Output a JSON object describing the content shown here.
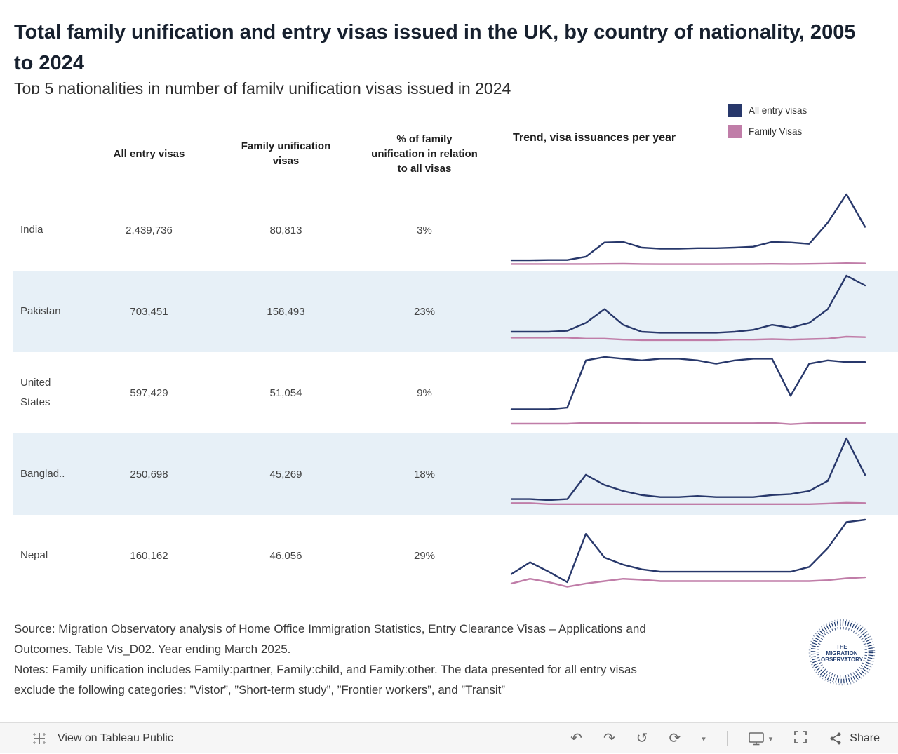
{
  "title": "Total family unification and entry visas issued in the UK, by country of nationality, 2005 to 2024",
  "subtitle": "Top 5 nationalities in number of family unification visas issued in 2024",
  "legend": {
    "items": [
      {
        "label": "All entry visas",
        "color": "#28386b"
      },
      {
        "label": "Family Visas",
        "color": "#c07da8"
      }
    ]
  },
  "table": {
    "columns": [
      {
        "lines": [
          "All entry visas"
        ]
      },
      {
        "lines": [
          "Family unification",
          "visas"
        ]
      },
      {
        "lines": [
          "% of family",
          "unification in relation",
          "to all visas"
        ]
      }
    ],
    "trend_header": "Trend, visa issuances per year",
    "rows": [
      {
        "country": "India",
        "all_entry_visas": "2,439,736",
        "family_unification_visas": "80,813",
        "pct_family": "3%"
      },
      {
        "country": "Pakistan",
        "all_entry_visas": "703,451",
        "family_unification_visas": "158,493",
        "pct_family": "23%"
      },
      {
        "country": "United States",
        "all_entry_visas": "597,429",
        "family_unification_visas": "51,054",
        "pct_family": "9%"
      },
      {
        "country": "Banglad..",
        "all_entry_visas": "250,698",
        "family_unification_visas": "45,269",
        "pct_family": "18%"
      },
      {
        "country": "Nepal",
        "all_entry_visas": "160,162",
        "family_unification_visas": "46,056",
        "pct_family": "29%"
      }
    ]
  },
  "chart_data": [
    {
      "type": "line",
      "country": "India",
      "y_units": "thousand visas per year (estimated from sparkline)",
      "x": [
        2005,
        2006,
        2007,
        2008,
        2009,
        2010,
        2011,
        2012,
        2013,
        2014,
        2015,
        2016,
        2017,
        2018,
        2019,
        2020,
        2021,
        2022,
        2023,
        2024
      ],
      "series": [
        {
          "name": "All entry visas",
          "color": "#28386b",
          "values": [
            17,
            17,
            18,
            18,
            30,
            80,
            82,
            62,
            58,
            58,
            60,
            60,
            62,
            65,
            82,
            80,
            75,
            150,
            250,
            135
          ]
        },
        {
          "name": "Family Visas",
          "color": "#c07da8",
          "values": [
            4,
            4,
            4,
            4,
            4,
            4.5,
            5,
            4,
            3.5,
            3.5,
            3.5,
            3.5,
            4,
            4,
            4.5,
            4,
            4.5,
            5.5,
            7,
            6
          ]
        }
      ]
    },
    {
      "type": "line",
      "country": "Pakistan",
      "y_units": "thousand visas per year (estimated from sparkline)",
      "x": [
        2005,
        2006,
        2007,
        2008,
        2009,
        2010,
        2011,
        2012,
        2013,
        2014,
        2015,
        2016,
        2017,
        2018,
        2019,
        2020,
        2021,
        2022,
        2023,
        2024
      ],
      "series": [
        {
          "name": "All entry visas",
          "color": "#28386b",
          "values": [
            15,
            15,
            15,
            16,
            24,
            38,
            22,
            15,
            14,
            14,
            14,
            14,
            15,
            17,
            22,
            19,
            24,
            38,
            72,
            62
          ]
        },
        {
          "name": "Family Visas",
          "color": "#c07da8",
          "values": [
            9,
            9,
            9,
            9,
            8,
            8,
            7,
            6.5,
            6.5,
            6.5,
            6.5,
            6.5,
            7,
            7,
            7.5,
            7,
            7.5,
            8,
            10,
            9.5
          ]
        }
      ]
    },
    {
      "type": "line",
      "country": "United States",
      "y_units": "thousand visas per year (estimated from sparkline)",
      "x": [
        2005,
        2006,
        2007,
        2008,
        2009,
        2010,
        2011,
        2012,
        2013,
        2014,
        2015,
        2016,
        2017,
        2018,
        2019,
        2020,
        2021,
        2022,
        2023,
        2024
      ],
      "series": [
        {
          "name": "All entry visas",
          "color": "#28386b",
          "values": [
            11,
            11,
            11,
            12,
            40,
            42,
            41,
            40,
            41,
            41,
            40,
            38,
            40,
            41,
            41,
            19,
            38,
            40,
            39,
            39
          ]
        },
        {
          "name": "Family Visas",
          "color": "#c07da8",
          "values": [
            2.5,
            2.5,
            2.5,
            2.5,
            3,
            3,
            3,
            2.8,
            2.8,
            2.8,
            2.8,
            2.8,
            2.8,
            2.8,
            3,
            2.2,
            2.8,
            3,
            3,
            3
          ]
        }
      ]
    },
    {
      "type": "line",
      "country": "Bangladesh",
      "y_units": "thousand visas per year (estimated from sparkline)",
      "x": [
        2005,
        2006,
        2007,
        2008,
        2009,
        2010,
        2011,
        2012,
        2013,
        2014,
        2015,
        2016,
        2017,
        2018,
        2019,
        2020,
        2021,
        2022,
        2023,
        2024
      ],
      "series": [
        {
          "name": "All entry visas",
          "color": "#28386b",
          "values": [
            5,
            5,
            4.5,
            5,
            17,
            12,
            9,
            7,
            6,
            6,
            6.5,
            6,
            6,
            6,
            7,
            7.5,
            9,
            14,
            35,
            17
          ]
        },
        {
          "name": "Family Visas",
          "color": "#c07da8",
          "values": [
            3,
            3,
            2.5,
            2.5,
            2.5,
            2.5,
            2.5,
            2.5,
            2.5,
            2.5,
            2.5,
            2.5,
            2.5,
            2.5,
            2.5,
            2.5,
            2.5,
            2.8,
            3.2,
            3
          ]
        }
      ]
    },
    {
      "type": "line",
      "country": "Nepal",
      "y_units": "thousand visas per year (estimated from sparkline)",
      "x": [
        2005,
        2006,
        2007,
        2008,
        2009,
        2010,
        2011,
        2012,
        2013,
        2014,
        2015,
        2016,
        2017,
        2018,
        2019,
        2020,
        2021,
        2022,
        2023,
        2024
      ],
      "series": [
        {
          "name": "All entry visas",
          "color": "#28386b",
          "values": [
            3.5,
            6,
            4,
            1.8,
            12,
            7,
            5.5,
            4.5,
            4,
            4,
            4,
            4,
            4,
            4,
            4,
            4,
            5,
            9,
            14.5,
            15
          ]
        },
        {
          "name": "Family Visas",
          "color": "#c07da8",
          "values": [
            1.5,
            2.5,
            1.8,
            0.8,
            1.5,
            2,
            2.5,
            2.3,
            2,
            2,
            2,
            2,
            2,
            2,
            2,
            2,
            2,
            2.2,
            2.6,
            2.8
          ]
        }
      ]
    }
  ],
  "footer": {
    "source_lines": [
      "Source: Migration Observatory analysis of Home Office Immigration Statistics, Entry Clearance Visas – Applications and",
      "Outcomes. Table Vis_D02.  Year ending March 2025."
    ],
    "notes_lines": [
      "Notes: Family unification includes Family:partner, Family:child, and Family:other. The data presented for all entry visas",
      "exclude the following categories: ”Vistor”, ”Short-term study”, ”Frontier workers”, and ”Transit”"
    ],
    "logo_lines": [
      "THE",
      "MIGRATION",
      "OBSERVATORY"
    ]
  },
  "toolbar": {
    "view_label": "View on Tableau Public",
    "share_label": "Share",
    "glyphs": {
      "undo": "↶",
      "redo": "↷",
      "reset": "↺",
      "refresh": "⟳",
      "caret": "▾"
    }
  }
}
